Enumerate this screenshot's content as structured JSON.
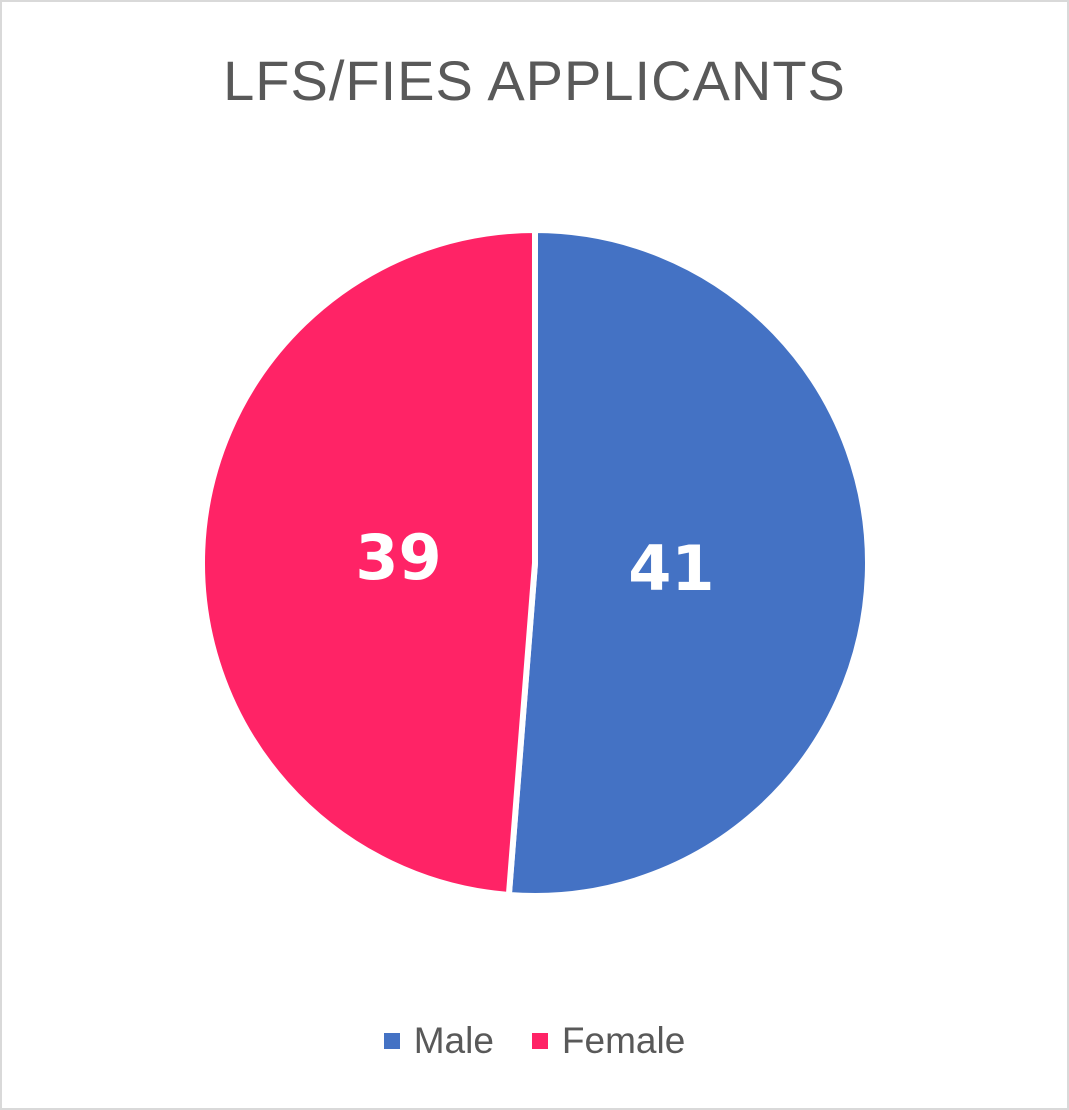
{
  "chart_data": {
    "type": "pie",
    "title": "LFS/FIES APPLICANTS",
    "categories": [
      "Male",
      "Female"
    ],
    "values": [
      41,
      39
    ],
    "colors": [
      "#4472C4",
      "#FF2366"
    ],
    "data_labels": [
      "41",
      "39"
    ],
    "legend": {
      "placement": "bottom",
      "entries": [
        "Male",
        "Female"
      ]
    },
    "start_angle": "12 o'clock",
    "direction": "clockwise"
  }
}
